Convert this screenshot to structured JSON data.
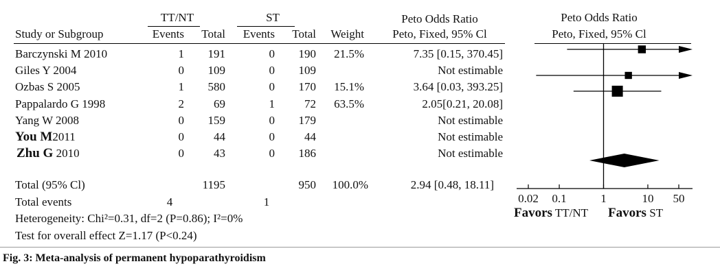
{
  "headers": {
    "group1": "TT/NT",
    "group2": "ST",
    "ratio_top": "Peto Odds Ratio",
    "study": "Study or Subgroup",
    "events1": "Events",
    "total1": "Total",
    "events2": "Events",
    "total2": "Total",
    "weight": "Weight",
    "method": "Peto, Fixed, 95% Cl",
    "plot_top": "Peto Odds Ratio",
    "plot_method": "Peto, Fixed, 95% Cl"
  },
  "rows": [
    {
      "study_name": "Barczynski M 2010",
      "e1": "1",
      "t1": "191",
      "e2": "0",
      "t2": "190",
      "weight": "21.5%",
      "ci_text": "7.35 [0.15, 370.45]"
    },
    {
      "study_name": "Giles Y 2004",
      "e1": "0",
      "t1": "109",
      "e2": "0",
      "t2": "109",
      "weight": "",
      "ci_text": "Not estimable"
    },
    {
      "study_name": "Ozbas S 2005",
      "e1": "1",
      "t1": "580",
      "e2": "0",
      "t2": "170",
      "weight": "15.1%",
      "ci_text": "3.64 [0.03, 393.25]"
    },
    {
      "study_name": "Pappalardo G 1998",
      "e1": "2",
      "t1": "69",
      "e2": "1",
      "t2": "72",
      "weight": "63.5%",
      "ci_text": "2.05[0.21, 20.08]"
    },
    {
      "study_name": "Yang W 2008",
      "e1": "0",
      "t1": "159",
      "e2": "0",
      "t2": "179",
      "weight": "",
      "ci_text": "Not estimable"
    },
    {
      "study_name": "You M",
      "study_year": "2011",
      "e1": "0",
      "t1": "44",
      "e2": "0",
      "t2": "44",
      "weight": "",
      "ci_text": "Not estimable"
    },
    {
      "study_name": "Zhu G",
      "study_year": "2010",
      "e1": "0",
      "t1": "43",
      "e2": "0",
      "t2": "186",
      "weight": "",
      "ci_text": "Not estimable"
    }
  ],
  "total": {
    "label": "Total (95% Cl)",
    "t1": "1195",
    "t2": "950",
    "weight": "100.0%",
    "ci_text": "2.94 [0.48, 18.11]"
  },
  "events": {
    "label": "Total events",
    "e1": "4",
    "e2": "1"
  },
  "heterogeneity": "Heterogeneity: Chi²=0.31, df=2 (P=0.86); I²=0%",
  "overall_effect": "Test for overall effect Z=1.17 (P<0.24)",
  "caption": "Fig. 3: Meta-analysis of permanent hypoparathyroidism",
  "axis": {
    "ticks": [
      "0.02",
      "0.1",
      "1",
      "10",
      "50"
    ],
    "favors_left_bold": "Favors",
    "favors_left": "TT/NT",
    "favors_right_bold": "Favors",
    "favors_right": "ST"
  },
  "chart_data": {
    "type": "forest",
    "scale": "log",
    "xlim": [
      0.02,
      50
    ],
    "null_line": 1,
    "studies": [
      {
        "name": "Barczynski M 2010",
        "or": 7.35,
        "ci": [
          0.15,
          370.45
        ],
        "weight": 21.5
      },
      {
        "name": "Giles Y 2004",
        "or": null,
        "ci": null,
        "weight": null
      },
      {
        "name": "Ozbas S 2005",
        "or": 3.64,
        "ci": [
          0.03,
          393.25
        ],
        "weight": 15.1
      },
      {
        "name": "Pappalardo G 1998",
        "or": 2.05,
        "ci": [
          0.21,
          20.08
        ],
        "weight": 63.5
      },
      {
        "name": "Yang W 2008",
        "or": null,
        "ci": null,
        "weight": null
      },
      {
        "name": "You M 2011",
        "or": null,
        "ci": null,
        "weight": null
      },
      {
        "name": "Zhu G 2010",
        "or": null,
        "ci": null,
        "weight": null
      }
    ],
    "pooled": {
      "or": 2.94,
      "ci": [
        0.48,
        18.11
      ],
      "weight": 100.0
    }
  }
}
